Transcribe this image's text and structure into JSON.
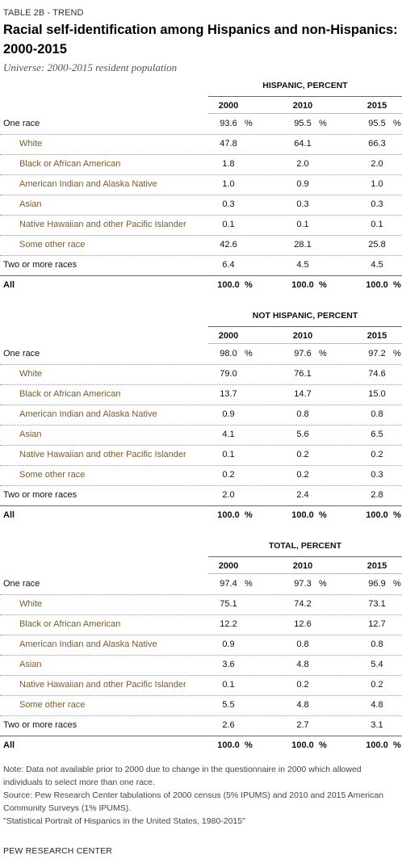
{
  "label": "TABLE 2B - TREND",
  "title": "Racial self-identification among Hispanics and non-Hispanics: 2000-2015",
  "universe": "Universe: 2000-2015 resident population",
  "years": [
    "2000",
    "2010",
    "2015"
  ],
  "sections": [
    {
      "heading": "HISPANIC, PERCENT",
      "rows": [
        {
          "label": "One race",
          "values": [
            "93.6",
            "95.5",
            "95.5"
          ],
          "pct": "%"
        },
        {
          "label": "White",
          "values": [
            "47.8",
            "64.1",
            "66.3"
          ]
        },
        {
          "label": "Black or African American",
          "values": [
            "1.8",
            "2.0",
            "2.0"
          ]
        },
        {
          "label": "American Indian and Alaska Native",
          "values": [
            "1.0",
            "0.9",
            "1.0"
          ]
        },
        {
          "label": "Asian",
          "values": [
            "0.3",
            "0.3",
            "0.3"
          ]
        },
        {
          "label": "Native Hawaiian and other Pacific Islander",
          "values": [
            "0.1",
            "0.1",
            "0.1"
          ]
        },
        {
          "label": "Some other race",
          "values": [
            "42.6",
            "28.1",
            "25.8"
          ]
        },
        {
          "label": "Two or more races",
          "values": [
            "6.4",
            "4.5",
            "4.5"
          ]
        },
        {
          "label": "All",
          "values": [
            "100.0",
            "100.0",
            "100.0"
          ],
          "pct": "%"
        }
      ]
    },
    {
      "heading": "NOT HISPANIC, PERCENT",
      "rows": [
        {
          "label": "One race",
          "values": [
            "98.0",
            "97.6",
            "97.2"
          ],
          "pct": "%"
        },
        {
          "label": "White",
          "values": [
            "79.0",
            "76.1",
            "74.6"
          ]
        },
        {
          "label": "Black or African American",
          "values": [
            "13.7",
            "14.7",
            "15.0"
          ]
        },
        {
          "label": "American Indian and Alaska Native",
          "values": [
            "0.9",
            "0.8",
            "0.8"
          ]
        },
        {
          "label": "Asian",
          "values": [
            "4.1",
            "5.6",
            "6.5"
          ]
        },
        {
          "label": "Native Hawaiian and other Pacific Islander",
          "values": [
            "0.1",
            "0.2",
            "0.2"
          ]
        },
        {
          "label": "Some other race",
          "values": [
            "0.2",
            "0.2",
            "0.3"
          ]
        },
        {
          "label": "Two or more races",
          "values": [
            "2.0",
            "2.4",
            "2.8"
          ]
        },
        {
          "label": "All",
          "values": [
            "100.0",
            "100.0",
            "100.0"
          ],
          "pct": "%"
        }
      ]
    },
    {
      "heading": "TOTAL, PERCENT",
      "rows": [
        {
          "label": "One race",
          "values": [
            "97.4",
            "97.3",
            "96.9"
          ],
          "pct": "%"
        },
        {
          "label": "White",
          "values": [
            "75.1",
            "74.2",
            "73.1"
          ]
        },
        {
          "label": "Black or African American",
          "values": [
            "12.2",
            "12.6",
            "12.7"
          ]
        },
        {
          "label": "American Indian and Alaska Native",
          "values": [
            "0.9",
            "0.8",
            "0.8"
          ]
        },
        {
          "label": "Asian",
          "values": [
            "3.6",
            "4.8",
            "5.4"
          ]
        },
        {
          "label": "Native Hawaiian and other Pacific Islander",
          "values": [
            "0.1",
            "0.2",
            "0.2"
          ]
        },
        {
          "label": "Some other race",
          "values": [
            "5.5",
            "4.8",
            "4.8"
          ]
        },
        {
          "label": "Two or more races",
          "values": [
            "2.6",
            "2.7",
            "3.1"
          ]
        },
        {
          "label": "All",
          "values": [
            "100.0",
            "100.0",
            "100.0"
          ],
          "pct": "%"
        }
      ]
    }
  ],
  "notes": {
    "note": "Note: Data not available prior to 2000 due to change in the questionnaire in 2000 which allowed individuals to select more than one race.",
    "source": "Source: Pew Research Center tabulations of 2000 census (5% IPUMS) and 2010 and 2015 American Community Surveys (1% IPUMS).",
    "report": "\"Statistical Portrait of Hispanics in the United States, 1980-2015\""
  },
  "brand": "PEW RESEARCH CENTER"
}
